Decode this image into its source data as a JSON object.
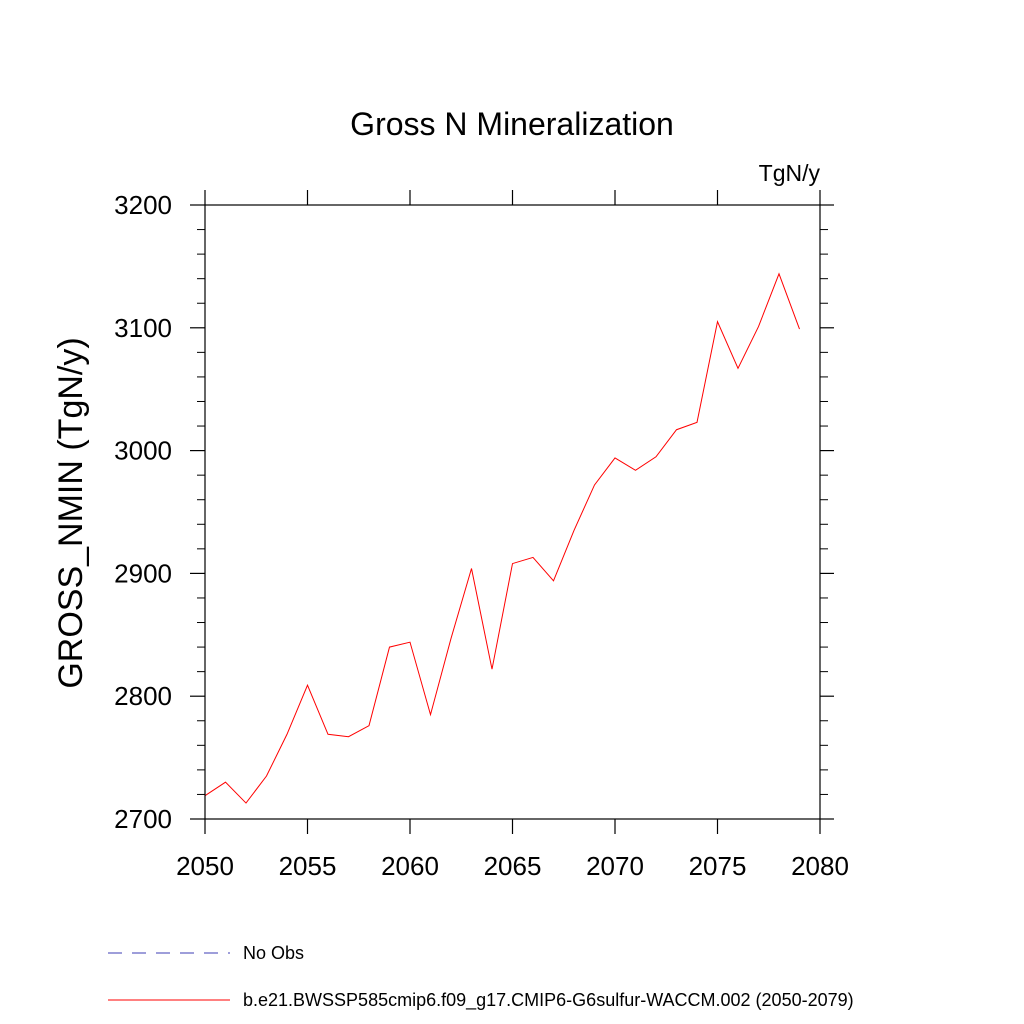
{
  "chart_data": {
    "type": "line",
    "title": "Gross N Mineralization",
    "units_label": "TgN/y",
    "xlabel": "",
    "ylabel": "GROSS_NMIN  (TgN/y)",
    "xlim": [
      2050,
      2080
    ],
    "ylim": [
      2700,
      3200
    ],
    "x_ticks": [
      2050,
      2055,
      2060,
      2065,
      2070,
      2075,
      2080
    ],
    "y_ticks": [
      2700,
      2800,
      2900,
      3000,
      3100,
      3200
    ],
    "x_tick_labels": [
      "2050",
      "2055",
      "2060",
      "2065",
      "2070",
      "2075",
      "2080"
    ],
    "y_tick_labels": [
      "2700",
      "2800",
      "2900",
      "3000",
      "3100",
      "3200"
    ],
    "grid": false,
    "legend_position": "bottom",
    "series": [
      {
        "name": "b.e21.BWSSP585cmip6.f09_g17.CMIP6-G6sulfur-WACCM.002 (2050-2079)",
        "color": "#ff0000",
        "style": "solid",
        "x": [
          2050,
          2051,
          2052,
          2053,
          2054,
          2055,
          2056,
          2057,
          2058,
          2059,
          2060,
          2061,
          2062,
          2063,
          2064,
          2065,
          2066,
          2067,
          2068,
          2069,
          2070,
          2071,
          2072,
          2073,
          2074,
          2075,
          2076,
          2077,
          2078,
          2079
        ],
        "y": [
          2719,
          2730,
          2713,
          2735,
          2769,
          2809,
          2769,
          2767,
          2776,
          2840,
          2844,
          2785,
          2847,
          2904,
          2822,
          2908,
          2913,
          2894,
          2935,
          2972,
          2994,
          2984,
          2995,
          3017,
          3023,
          3105,
          3067,
          3101,
          3144,
          3099
        ]
      }
    ],
    "legend": [
      {
        "label": "No Obs",
        "color": "#3c3cb4",
        "style": "dashed"
      },
      {
        "label": "b.e21.BWSSP585cmip6.f09_g17.CMIP6-G6sulfur-WACCM.002 (2050-2079)",
        "color": "#ff0000",
        "style": "solid"
      }
    ]
  }
}
